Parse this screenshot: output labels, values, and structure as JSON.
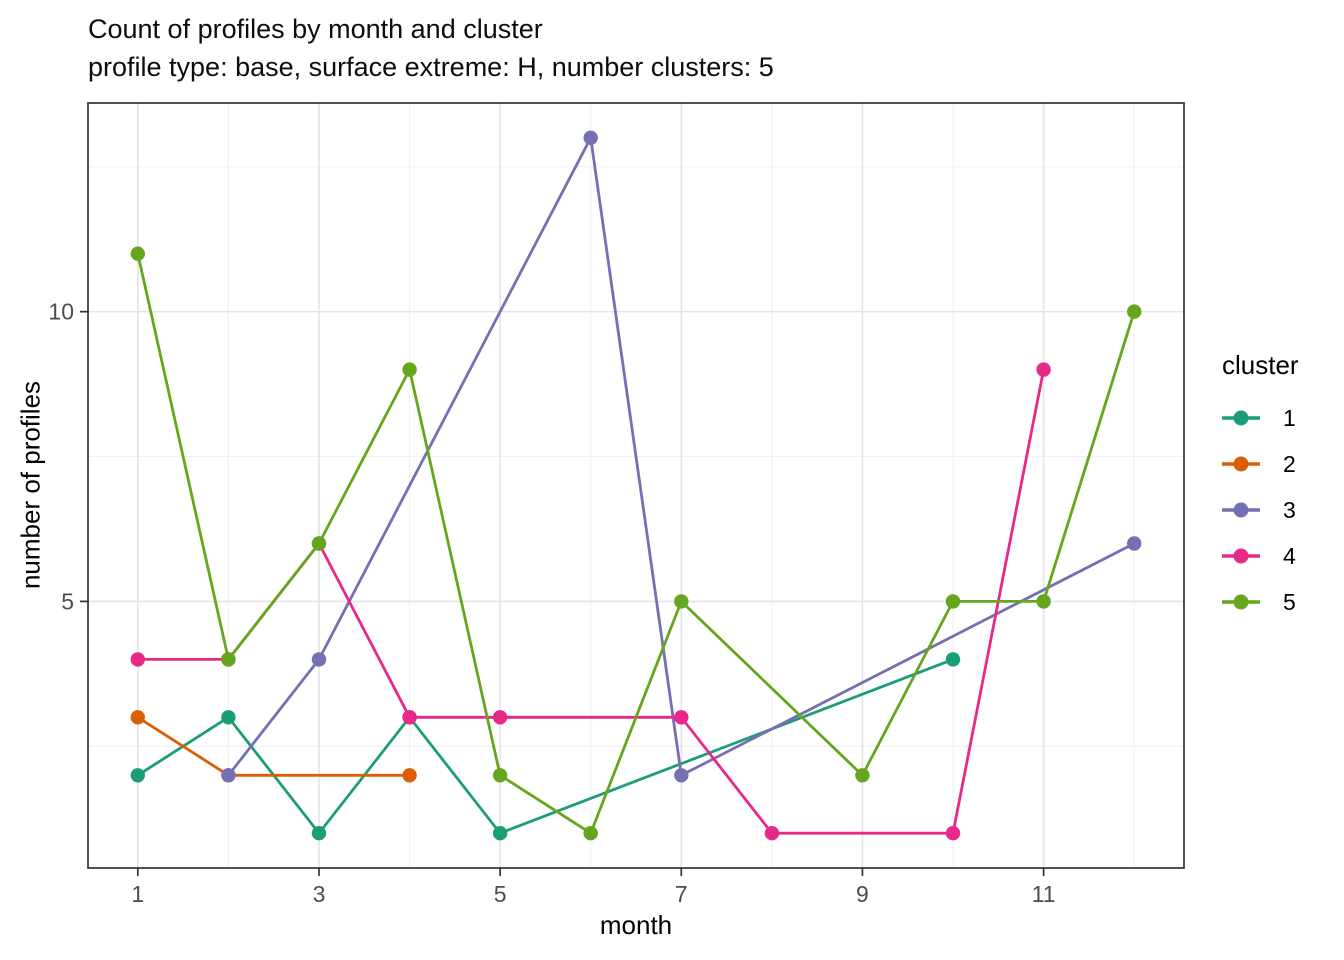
{
  "title": "Count of profiles by month and cluster",
  "subtitle": "profile type: base, surface extreme: H, number clusters: 5",
  "chart_data": {
    "type": "line",
    "title": "Count of profiles by month and cluster",
    "subtitle": "profile type: base, surface extreme: H, number clusters: 5",
    "xlabel": "month",
    "ylabel": "number of profiles",
    "legend_title": "cluster",
    "legend_position": "right",
    "grid": true,
    "xlim": [
      0.45,
      12.55
    ],
    "ylim": [
      0.4,
      13.6
    ],
    "x_ticks": [
      1,
      3,
      5,
      7,
      9,
      11
    ],
    "y_ticks": [
      5,
      10
    ],
    "x_minor_gridlines": [
      2,
      4,
      6,
      8,
      10,
      12
    ],
    "y_minor_gridlines": [
      2.5,
      7.5,
      12.5
    ],
    "series": [
      {
        "name": "1",
        "color": "#1B9E77",
        "points": [
          [
            1,
            2
          ],
          [
            2,
            3
          ],
          [
            3,
            1
          ],
          [
            4,
            3
          ],
          [
            5,
            1
          ],
          [
            10,
            4
          ]
        ]
      },
      {
        "name": "2",
        "color": "#D95F02",
        "points": [
          [
            1,
            3
          ],
          [
            2,
            2
          ],
          [
            4,
            2
          ]
        ]
      },
      {
        "name": "3",
        "color": "#7570B3",
        "points": [
          [
            2,
            2
          ],
          [
            3,
            4
          ],
          [
            6,
            13
          ],
          [
            7,
            2
          ],
          [
            12,
            6
          ]
        ]
      },
      {
        "name": "4",
        "color": "#E7298A",
        "points": [
          [
            1,
            4
          ],
          [
            2,
            4
          ],
          [
            3,
            6
          ],
          [
            4,
            3
          ],
          [
            5,
            3
          ],
          [
            7,
            3
          ],
          [
            8,
            1
          ],
          [
            10,
            1
          ],
          [
            11,
            9
          ]
        ]
      },
      {
        "name": "5",
        "color": "#66A61E",
        "points": [
          [
            1,
            11
          ],
          [
            2,
            4
          ],
          [
            3,
            6
          ],
          [
            4,
            9
          ],
          [
            5,
            2
          ],
          [
            6,
            1
          ],
          [
            7,
            5
          ],
          [
            9,
            2
          ],
          [
            10,
            5
          ],
          [
            11,
            5
          ],
          [
            12,
            10
          ]
        ]
      }
    ],
    "colors": {
      "grid_major": "#e4e4e4",
      "grid_minor": "#f1f1f1",
      "panel_border": "#333333",
      "tick_mark": "#333333",
      "tick_label": "#4d4d4d",
      "text": "#000000",
      "background": "#ffffff"
    }
  }
}
